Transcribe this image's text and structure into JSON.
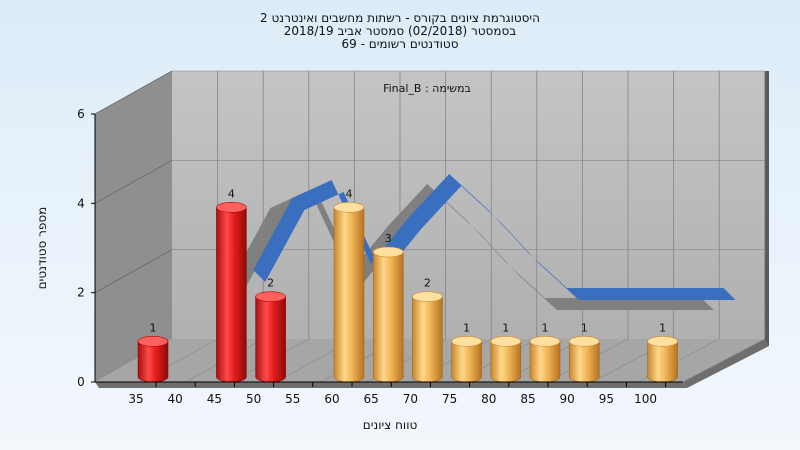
{
  "chart_data": {
    "type": "bar",
    "title_lines": [
      "היסטוגרמת ציונים בקורס - רשתות מחשבים ואינטרנט 2",
      "בסמסטר  (02/2018)  סמסטר אביב 2018/19",
      "סטודנטים רשומים - 69"
    ],
    "subtitle": "במשימה : Final_B",
    "xlabel": "טווח ציונים",
    "ylabel": "מספר סטודנטים",
    "ylim": [
      0,
      6
    ],
    "y_ticks": [
      0,
      2,
      4,
      6
    ],
    "x_ticks": [
      35,
      40,
      45,
      50,
      55,
      60,
      65,
      70,
      75,
      80,
      85,
      90,
      95,
      100
    ],
    "bars": [
      {
        "x": 35,
        "value": 1,
        "color": "red"
      },
      {
        "x": 45,
        "value": 4,
        "color": "red"
      },
      {
        "x": 50,
        "value": 2,
        "color": "red"
      },
      {
        "x": 60,
        "value": 4,
        "color": "orange"
      },
      {
        "x": 65,
        "value": 3,
        "color": "orange"
      },
      {
        "x": 70,
        "value": 2,
        "color": "orange"
      },
      {
        "x": 75,
        "value": 1,
        "color": "orange"
      },
      {
        "x": 80,
        "value": 1,
        "color": "orange"
      },
      {
        "x": 85,
        "value": 1,
        "color": "orange"
      },
      {
        "x": 90,
        "value": 1,
        "color": "orange"
      },
      {
        "x": 100,
        "value": 1,
        "color": "orange"
      }
    ],
    "curve": {
      "x": [
        40,
        45,
        50,
        55,
        60,
        65,
        70,
        75,
        80,
        85,
        90,
        95,
        100
      ],
      "values": [
        0.5,
        1.7,
        2.0,
        0.6,
        1.4,
        2.1,
        1.5,
        0.8,
        0.2,
        0.2,
        0.2,
        0.2,
        0.2
      ]
    },
    "colors": {
      "red": "#e01c1c",
      "orange": "#f0b455",
      "curve": "#3a6fc0",
      "curve_shadow": "#808080"
    },
    "grid": true
  }
}
